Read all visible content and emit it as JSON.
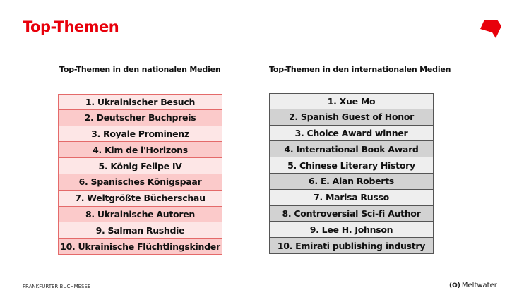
{
  "title": "Top-Themen",
  "accent_color": "#e8000b",
  "national": {
    "heading": "Top-Themen in den nationalen Medien",
    "items": [
      "1. Ukrainischer Besuch",
      "2. Deutscher Buchpreis",
      "3. Royale Prominenz",
      "4. Kim de l'Horizons",
      "5. König Felipe IV",
      "6. Spanisches Königspaar",
      "7. Weltgrößte Bücherschau",
      "8. Ukrainische Autoren",
      "9. Salman Rushdie",
      "10. Ukrainische Flüchtlingskinder"
    ]
  },
  "international": {
    "heading": "Top-Themen in den internationalen Medien",
    "items": [
      "1. Xue Mo",
      "2. Spanish Guest of Honor",
      "3. Choice Award winner",
      "4. International Book Award",
      "5. Chinese Literary History",
      "6. E. Alan Roberts",
      "7. Marisa Russo",
      "8. Controversial Sci-fi Author",
      "9. Lee H. Johnson",
      "10. Emirati publishing industry"
    ]
  },
  "footer": {
    "left": "FRANKFURTER BUCHMESSE",
    "brand": "Meltwater",
    "brand_icon": "meltwater-logo-icon"
  }
}
